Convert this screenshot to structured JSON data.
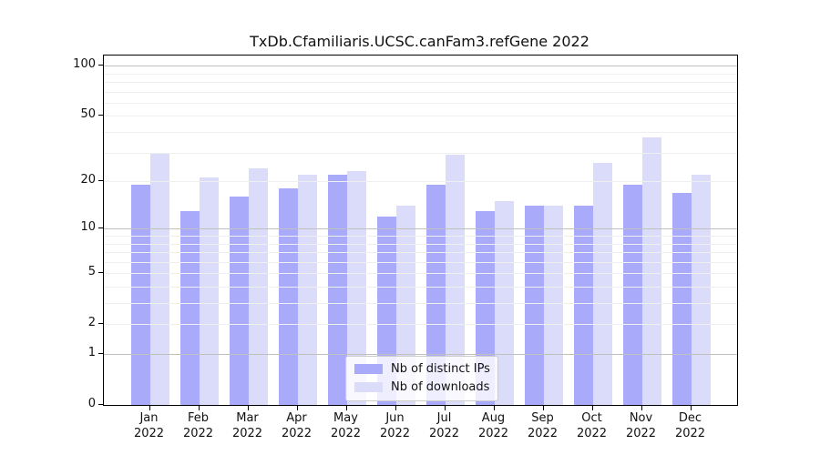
{
  "title": "TxDb.Cfamiliaris.UCSC.canFam3.refGene 2022",
  "chart_data": {
    "type": "bar",
    "title": "TxDb.Cfamiliaris.UCSC.canFam3.refGene 2022",
    "yscale": "log1p",
    "grid": "on",
    "legend_position": "lower-center",
    "categories": [
      "Jan",
      "Feb",
      "Mar",
      "Apr",
      "May",
      "Jun",
      "Jul",
      "Aug",
      "Sep",
      "Oct",
      "Nov",
      "Dec"
    ],
    "year_label": "2022",
    "series": [
      {
        "name": "Nb of distinct IPs",
        "color": "#aaaafa",
        "values": [
          19,
          13,
          16,
          18,
          22,
          12,
          19,
          13,
          14,
          14,
          19,
          17
        ]
      },
      {
        "name": "Nb of downloads",
        "color": "#dbdbfa",
        "values": [
          30,
          21,
          24,
          22,
          23,
          14,
          29,
          15,
          14,
          26,
          37,
          22
        ]
      }
    ],
    "ylim": [
      0,
      100
    ],
    "yticks": [
      0,
      1,
      2,
      5,
      10,
      20,
      50,
      100
    ],
    "ytick_labels": [
      "0",
      "1",
      "2",
      "5",
      "10",
      "20",
      "50",
      "100"
    ],
    "major_grid": [
      1,
      10,
      100
    ],
    "minor_grid": [
      2,
      3,
      4,
      5,
      6,
      7,
      8,
      9,
      20,
      30,
      40,
      50,
      60,
      70,
      80,
      90
    ]
  },
  "colors": {
    "major_grid": "#c0c0c0",
    "minor_grid": "#efefef",
    "axis": "#000000",
    "text": "#111111"
  }
}
